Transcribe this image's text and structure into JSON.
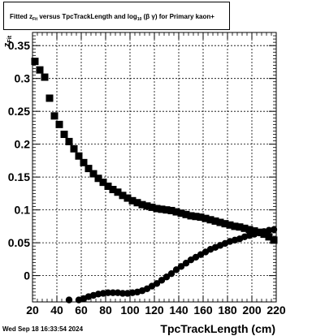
{
  "title": {
    "prefix": "Fitted  z",
    "sub1": "Fit",
    "mid": "  versus TpcTrackLength and log",
    "sub2": "10",
    "suffix": " (β  γ) for Primary kaon+"
  },
  "footer": {
    "timestamp": "Wed Sep 18 16:33:54 2024"
  },
  "chart_data": {
    "type": "scatter",
    "title": "Fitted z_Fit versus TpcTrackLength and log10(β γ) for Primary kaon+",
    "xlabel": "TpcTrackLength (cm)",
    "ylabel": "z_Fit",
    "ylabel_main": "z",
    "ylabel_sub": "Fit",
    "xlim": [
      20,
      220
    ],
    "ylim": [
      -0.04,
      0.37
    ],
    "grid": true,
    "xticks": [
      20,
      40,
      60,
      80,
      100,
      120,
      140,
      160,
      180,
      200,
      220
    ],
    "yticks": [
      0,
      0.05,
      0.1,
      0.15,
      0.2,
      0.25,
      0.3,
      0.35
    ],
    "ytick_labels": [
      "0",
      "0.05",
      "0.1",
      "0.15",
      "0.2",
      "0.25",
      "0.3",
      "0.35"
    ],
    "series": [
      {
        "marker": "square",
        "x": [
          22,
          26,
          30,
          34,
          38,
          42,
          46,
          50,
          54,
          58,
          62,
          66,
          70,
          74,
          78,
          82,
          86,
          90,
          94,
          98,
          102,
          106,
          110,
          114,
          118,
          122,
          126,
          130,
          134,
          138,
          142,
          146,
          150,
          154,
          158,
          162,
          166,
          170,
          174,
          178,
          182,
          186,
          190,
          194,
          198,
          202,
          206,
          210,
          214,
          218
        ],
        "y": [
          0.326,
          0.313,
          0.302,
          0.27,
          0.243,
          0.23,
          0.215,
          0.204,
          0.193,
          0.182,
          0.172,
          0.163,
          0.155,
          0.148,
          0.142,
          0.136,
          0.131,
          0.127,
          0.122,
          0.118,
          0.114,
          0.111,
          0.108,
          0.106,
          0.104,
          0.102,
          0.101,
          0.1,
          0.099,
          0.097,
          0.095,
          0.093,
          0.091,
          0.09,
          0.089,
          0.087,
          0.085,
          0.083,
          0.081,
          0.079,
          0.077,
          0.075,
          0.074,
          0.072,
          0.07,
          0.068,
          0.066,
          0.063,
          0.059,
          0.054
        ]
      },
      {
        "marker": "circle",
        "x": [
          50,
          58,
          62,
          66,
          70,
          74,
          78,
          82,
          86,
          90,
          94,
          98,
          102,
          106,
          110,
          114,
          118,
          122,
          126,
          130,
          134,
          138,
          142,
          146,
          150,
          154,
          158,
          162,
          166,
          170,
          174,
          178,
          182,
          186,
          190,
          194,
          198,
          202,
          206,
          210,
          214,
          218
        ],
        "y": [
          -0.037,
          -0.037,
          -0.035,
          -0.032,
          -0.03,
          -0.028,
          -0.027,
          -0.026,
          -0.026,
          -0.026,
          -0.027,
          -0.027,
          -0.026,
          -0.025,
          -0.023,
          -0.02,
          -0.016,
          -0.012,
          -0.007,
          -0.002,
          0.003,
          0.009,
          0.014,
          0.019,
          0.024,
          0.028,
          0.032,
          0.036,
          0.04,
          0.043,
          0.046,
          0.049,
          0.052,
          0.054,
          0.056,
          0.059,
          0.061,
          0.063,
          0.065,
          0.067,
          0.069,
          0.07
        ]
      }
    ]
  }
}
